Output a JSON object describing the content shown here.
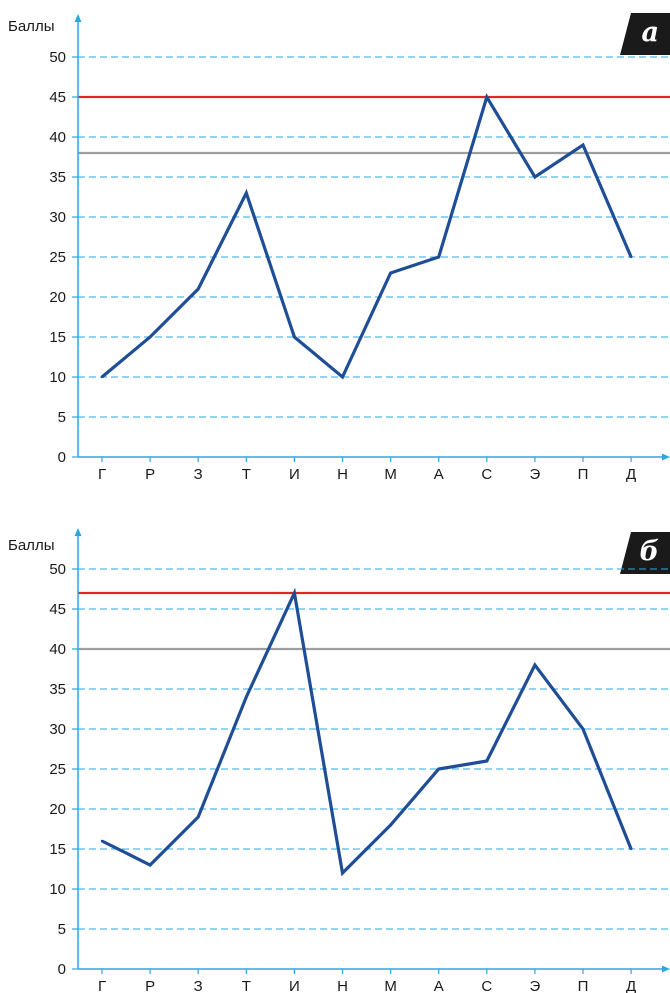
{
  "chart_data": [
    {
      "type": "line",
      "panel_label": "а",
      "ylabel": "Баллы",
      "categories": [
        "Г",
        "Р",
        "З",
        "Т",
        "И",
        "Н",
        "М",
        "А",
        "С",
        "Э",
        "П",
        "Д"
      ],
      "series": [
        {
          "values": [
            10,
            15,
            21,
            33,
            15,
            10,
            23,
            25,
            45,
            35,
            39,
            25
          ],
          "color": "#1f4e96"
        }
      ],
      "reference_lines": [
        {
          "value": 45,
          "color": "#e0262b"
        },
        {
          "value": 38,
          "color": "#9e9e9e"
        }
      ],
      "ylim": [
        0,
        50
      ],
      "yticks": [
        0,
        5,
        10,
        15,
        20,
        25,
        30,
        35,
        40,
        45,
        50
      ],
      "grid": true,
      "grid_color": "#29a9e0"
    },
    {
      "type": "line",
      "panel_label": "б",
      "ylabel": "Баллы",
      "categories": [
        "Г",
        "Р",
        "З",
        "Т",
        "И",
        "Н",
        "М",
        "А",
        "С",
        "Э",
        "П",
        "Д"
      ],
      "series": [
        {
          "values": [
            16,
            13,
            19,
            34,
            47,
            12,
            18,
            25,
            26,
            38,
            30,
            15
          ],
          "color": "#1f4e96"
        }
      ],
      "reference_lines": [
        {
          "value": 47,
          "color": "#e0262b"
        },
        {
          "value": 40,
          "color": "#9e9e9e"
        }
      ],
      "ylim": [
        0,
        50
      ],
      "yticks": [
        0,
        5,
        10,
        15,
        20,
        25,
        30,
        35,
        40,
        45,
        50
      ],
      "grid": true,
      "grid_color": "#29a9e0"
    }
  ]
}
